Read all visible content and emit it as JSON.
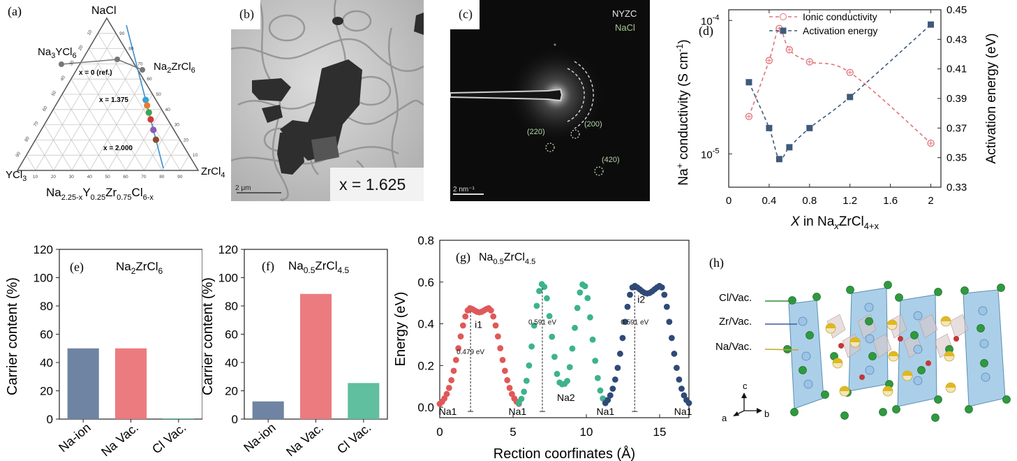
{
  "panels": {
    "a": {
      "label": "(a)",
      "apex_top": "NaCl",
      "apex_left": "YCl",
      "apex_left_sub": "3",
      "apex_right": "ZrCl",
      "apex_right_sub": "4",
      "comp_left_1": "Na",
      "comp_left_1_sub": "3",
      "comp_left_2": "YCl",
      "comp_left_2_sub": "6",
      "comp_right_1": "Na",
      "comp_right_1_sub": "2",
      "comp_right_2": "ZrCl",
      "comp_right_2_sub": "6",
      "point_labels": [
        "x = 0 (ref.)",
        "x = 1.375",
        "x = 2.000"
      ],
      "formula": [
        "Na",
        "2.25-x",
        "Y",
        "0.25",
        "Zr",
        "0.75",
        "Cl",
        "6-x"
      ],
      "ticks_left": [
        "10",
        "20",
        "30",
        "40",
        "50",
        "60",
        "70",
        "80",
        "90"
      ],
      "ticks_bottom": [
        "10",
        "20",
        "30",
        "40",
        "50",
        "60",
        "70",
        "80",
        "90"
      ],
      "ticks_right": [
        "10",
        "20",
        "30",
        "40",
        "50",
        "60",
        "70",
        "80",
        "90"
      ],
      "dot_colors": [
        "#3aa0d8",
        "#2e7fd0",
        "#e87a2b",
        "#3aa651",
        "#d23a3a",
        "#8b5bb5",
        "#8b4a2a"
      ]
    },
    "b": {
      "label": "(b)",
      "scale": "2 μm",
      "composition": "x = 1.625"
    },
    "c": {
      "label": "(c)",
      "legend": [
        "NYZC",
        "NaCl"
      ],
      "rings": [
        "(200)",
        "(220)",
        "(420)"
      ],
      "scale": "2 nm⁻¹"
    },
    "d": {
      "label": "(d)"
    },
    "e": {
      "label": "(e)",
      "title_main": "Na",
      "title_sub1": "2",
      "title_main2": "ZrCl",
      "title_sub2": "6"
    },
    "f": {
      "label": "(f)",
      "title_main": "Na",
      "title_sub1": "0.5",
      "title_main2": "ZrCl",
      "title_sub2": "4.5"
    },
    "g": {
      "label": "(g)",
      "title_main": "Na",
      "title_sub1": "0.5",
      "title_main2": "ZrCl",
      "title_sub2": "4.5"
    },
    "h": {
      "label": "(h)",
      "site_labels": [
        "Cl/Vac.",
        "Zr/Vac.",
        "Na/Vac."
      ],
      "axes": [
        "c",
        "a",
        "b"
      ]
    }
  },
  "chart_data": [
    {
      "id": "d",
      "type": "line",
      "xlabel": "X in NaxZrCl4+x",
      "xlabel_parts": [
        "X",
        " in Na",
        "x",
        "ZrCl",
        "4+x"
      ],
      "ylabel_left": "Na+ conductivity (S cm-1)",
      "ylabel_left_parts": [
        "Na",
        "+",
        " conductivity (S cm",
        "-1",
        ")"
      ],
      "ylabel_right": "Activation energy (eV)",
      "xlim": [
        0,
        2.1
      ],
      "xticks": [
        "0",
        "0.4",
        "0.8",
        "1.2",
        "1.6",
        "2"
      ],
      "xtick_values": [
        0,
        0.4,
        0.8,
        1.2,
        1.6,
        2
      ],
      "ylim_left_log": [
        -5.25,
        -3.92
      ],
      "yticks_left": [
        {
          "base": "10",
          "exp": "-4",
          "value": -4
        },
        {
          "base": "10",
          "exp": "-5",
          "value": -5
        }
      ],
      "ylim_right": [
        0.33,
        0.45
      ],
      "yticks_right": [
        "0.33",
        "0.35",
        "0.37",
        "0.39",
        "0.41",
        "0.43",
        "0.45"
      ],
      "series": [
        {
          "name": "Ionic conductivity",
          "color": "#e2727a",
          "axis": "left",
          "x": [
            0.2,
            0.4,
            0.5,
            0.6,
            0.8,
            1.2,
            2.0
          ],
          "log10_y": [
            -4.72,
            -4.3,
            -4.06,
            -4.22,
            -4.31,
            -4.39,
            -4.92
          ]
        },
        {
          "name": "Activation energy",
          "color": "#3f5a7a",
          "axis": "right",
          "x": [
            0.2,
            0.4,
            0.5,
            0.6,
            0.8,
            1.2,
            2.0
          ],
          "y": [
            0.401,
            0.37,
            0.349,
            0.357,
            0.37,
            0.391,
            0.44
          ]
        }
      ],
      "legend_position": "top-right"
    },
    {
      "id": "e",
      "type": "bar",
      "categories": [
        "Na-ion",
        "Na Vac.",
        "Cl Vac."
      ],
      "values": [
        50,
        50,
        0.5
      ],
      "colors": [
        "#6f84a2",
        "#ec7b80",
        "#5fbf9f"
      ],
      "ylabel": "Carrier content (%)",
      "ylim": [
        0,
        120
      ],
      "yticks": [
        "0",
        "20",
        "40",
        "60",
        "80",
        "100",
        "120"
      ]
    },
    {
      "id": "f",
      "type": "bar",
      "categories": [
        "Na-ion",
        "Na Vac.",
        "Cl Vac."
      ],
      "values": [
        12.5,
        88.5,
        25.5
      ],
      "colors": [
        "#6f84a2",
        "#ec7b80",
        "#5fbf9f"
      ],
      "ylabel": "Carrier content (%)",
      "ylim": [
        0,
        120
      ],
      "yticks": [
        "0",
        "20",
        "40",
        "60",
        "80",
        "100",
        "120"
      ]
    },
    {
      "id": "g",
      "type": "scatter",
      "xlabel": "Rection coorfinates (Å)",
      "ylabel": "Energy (eV)",
      "xlim": [
        0,
        17
      ],
      "ylim": [
        -0.05,
        0.8
      ],
      "xticks": [
        "0",
        "5",
        "10",
        "15"
      ],
      "yticks": [
        "0.0",
        "0.2",
        "0.4",
        "0.6",
        "0.8"
      ],
      "series": [
        {
          "color": "#e05858",
          "segment": [
            0,
            5.4
          ],
          "shape": "double-peak",
          "peaks": [
            {
              "x": 2.1,
              "y": 0.479
            },
            {
              "x": 3.3,
              "y": 0.479
            }
          ],
          "dip": 0.455
        },
        {
          "color": "#3db38c",
          "segment": [
            5.4,
            11.3
          ],
          "shape": "two-peaks",
          "peaks": [
            {
              "x": 7.0,
              "y": 0.591
            },
            {
              "x": 9.8,
              "y": 0.591
            }
          ],
          "valley": 0.11
        },
        {
          "color": "#2f4a78",
          "segment": [
            11.3,
            17
          ],
          "shape": "double-peak",
          "peaks": [
            {
              "x": 13.3,
              "y": 0.591
            },
            {
              "x": 15.0,
              "y": 0.591
            }
          ],
          "dip": 0.545
        }
      ],
      "annotations": [
        {
          "text": "0.479 eV",
          "x": 2.1
        },
        {
          "text": "0.591 eV",
          "x": 7.0
        },
        {
          "text": "0.591 eV",
          "x": 13.3
        }
      ],
      "point_labels": [
        "i1",
        "Na2",
        "i2"
      ],
      "site_labels": [
        "Na1",
        "Na1",
        "Na1",
        "Na1"
      ]
    }
  ]
}
